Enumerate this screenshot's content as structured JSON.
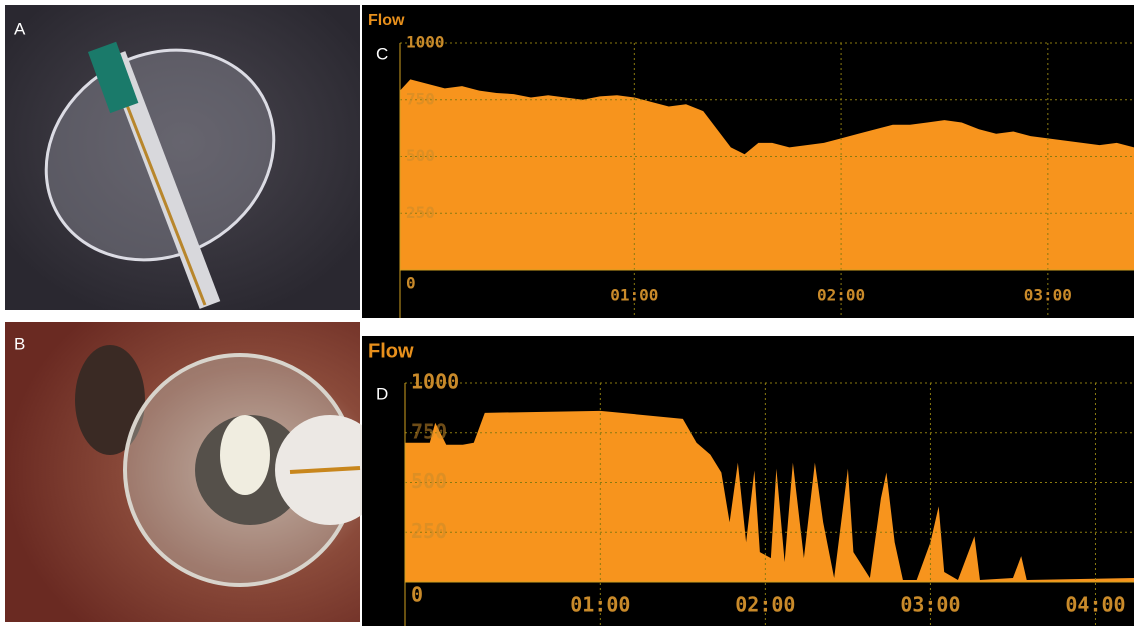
{
  "panel_labels": [
    "A",
    "B"
  ],
  "chart_data": [
    {
      "type": "area",
      "title": "Flow",
      "label": "C",
      "color": "#f7941d",
      "grid": true,
      "xlim": [
        -8,
        205
      ],
      "ylim": [
        0,
        1000
      ],
      "xticks": [
        {
          "value": 60,
          "label": "01:00"
        },
        {
          "value": 120,
          "label": "02:00"
        },
        {
          "value": 180,
          "label": "03:00"
        }
      ],
      "yticks": [
        0,
        250,
        500,
        750,
        1000
      ],
      "x": [
        -8,
        -5,
        0,
        5,
        10,
        15,
        20,
        25,
        30,
        35,
        40,
        45,
        50,
        55,
        60,
        65,
        70,
        75,
        80,
        84,
        88,
        92,
        96,
        100,
        105,
        110,
        115,
        120,
        125,
        130,
        135,
        140,
        145,
        150,
        155,
        160,
        165,
        170,
        175,
        180,
        185,
        190,
        195,
        200,
        205
      ],
      "values": [
        790,
        840,
        820,
        800,
        810,
        790,
        780,
        775,
        760,
        770,
        760,
        750,
        765,
        770,
        760,
        740,
        720,
        730,
        700,
        620,
        540,
        510,
        560,
        560,
        540,
        550,
        560,
        580,
        600,
        620,
        640,
        640,
        650,
        660,
        650,
        620,
        600,
        610,
        590,
        580,
        570,
        560,
        550,
        560,
        540
      ]
    },
    {
      "type": "area",
      "title": "Flow",
      "label": "D",
      "color": "#f7941d",
      "grid": true,
      "xlim": [
        -11,
        254
      ],
      "ylim": [
        0,
        1000
      ],
      "xticks": [
        {
          "value": 60,
          "label": "01:00"
        },
        {
          "value": 120,
          "label": "02:00"
        },
        {
          "value": 180,
          "label": "03:00"
        },
        {
          "value": 240,
          "label": "04:00"
        }
      ],
      "yticks": [
        0,
        250,
        500,
        750,
        1000
      ],
      "x": [
        -11,
        -2,
        0,
        4,
        10,
        14,
        18,
        60,
        90,
        95,
        100,
        104,
        107,
        110,
        113,
        116,
        118,
        122,
        124,
        127,
        130,
        134,
        138,
        141,
        145,
        150,
        152,
        158,
        162,
        164,
        167,
        170,
        175,
        180,
        183,
        185,
        190,
        196,
        198,
        210,
        213,
        215,
        254
      ],
      "values": [
        700,
        700,
        800,
        690,
        690,
        700,
        850,
        860,
        820,
        700,
        640,
        550,
        300,
        600,
        200,
        560,
        150,
        120,
        570,
        100,
        600,
        120,
        600,
        300,
        20,
        570,
        150,
        20,
        420,
        550,
        200,
        10,
        10,
        200,
        380,
        50,
        10,
        230,
        10,
        20,
        130,
        10,
        20
      ]
    }
  ]
}
